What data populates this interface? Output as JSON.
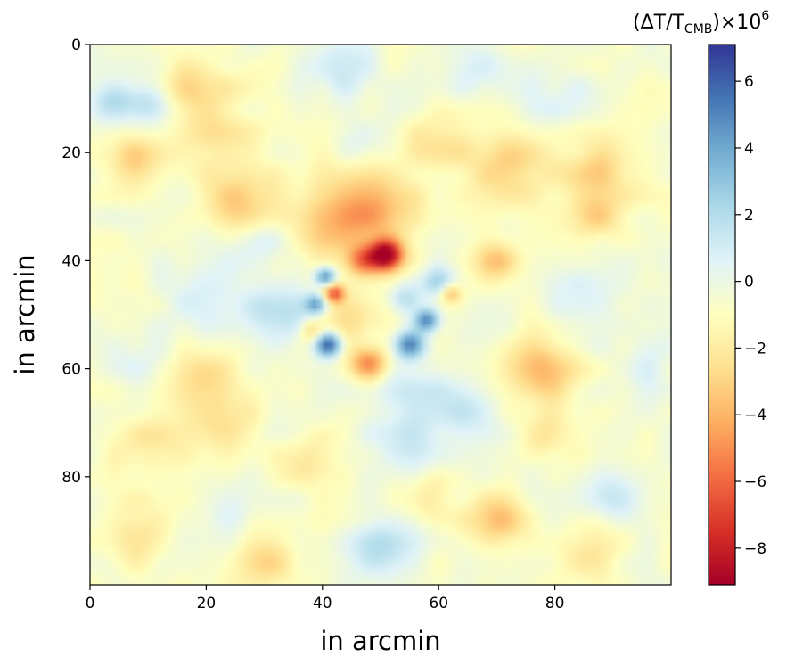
{
  "chart_data": {
    "type": "heatmap",
    "xlabel": "in arcmin",
    "ylabel": "in arcmin",
    "xlim": [
      0,
      100
    ],
    "ylim": [
      100,
      0
    ],
    "x_ticks": [
      0,
      20,
      40,
      60,
      80
    ],
    "y_ticks": [
      0,
      20,
      40,
      60,
      80
    ],
    "y_axis_inverted": true,
    "grid": false,
    "colormap": "RdYlBu (reversed scale: red = negative, blue = positive)",
    "colorbar": {
      "title_prefix": "(ΔT/T",
      "title_sub": "CMB",
      "title_suffix": ")×10",
      "title_exp": "6",
      "min": -9.1,
      "max": 7.1,
      "ticks": [
        "6",
        "4",
        "2",
        "0",
        "−2",
        "−4",
        "−6",
        "−8"
      ],
      "tick_values": [
        6,
        4,
        2,
        0,
        -2,
        -4,
        -6,
        -8
      ],
      "colors": [
        "#a50026",
        "#d73027",
        "#f46d43",
        "#fdae61",
        "#fee090",
        "#ffffbf",
        "#e0f3f8",
        "#abd9e9",
        "#74add1",
        "#4575b4",
        "#313695"
      ]
    },
    "background_level": -0.6,
    "features": [
      {
        "x": 51,
        "y": 39,
        "value": -9.0,
        "sigma": 2.0
      },
      {
        "x": 47,
        "y": 40,
        "value": -4.5,
        "sigma": 2.0
      },
      {
        "x": 42,
        "y": 46,
        "value": -5.5,
        "sigma": 1.3
      },
      {
        "x": 48,
        "y": 59,
        "value": -5.0,
        "sigma": 2.2
      },
      {
        "x": 62,
        "y": 46,
        "value": -3.5,
        "sigma": 1.3
      },
      {
        "x": 45,
        "y": 50,
        "value": -2.0,
        "sigma": 3.5
      },
      {
        "x": 38,
        "y": 53,
        "value": -2.5,
        "sigma": 1.5
      },
      {
        "x": 49,
        "y": 30,
        "value": -3.5,
        "sigma": 5.0
      },
      {
        "x": 40,
        "y": 33,
        "value": -2.0,
        "sigma": 6.0
      },
      {
        "x": 25,
        "y": 29,
        "value": -2.5,
        "sigma": 4.0
      },
      {
        "x": 7,
        "y": 21,
        "value": -2.5,
        "sigma": 3.5
      },
      {
        "x": 18,
        "y": 8,
        "value": -2.3,
        "sigma": 4.0
      },
      {
        "x": 22,
        "y": 18,
        "value": -1.7,
        "sigma": 5.0
      },
      {
        "x": 72,
        "y": 22,
        "value": -2.5,
        "sigma": 5.0
      },
      {
        "x": 88,
        "y": 23,
        "value": -2.2,
        "sigma": 4.5
      },
      {
        "x": 60,
        "y": 18,
        "value": -1.8,
        "sigma": 4.0
      },
      {
        "x": 78,
        "y": 60,
        "value": -3.3,
        "sigma": 4.0
      },
      {
        "x": 70,
        "y": 40,
        "value": -2.5,
        "sigma": 2.5
      },
      {
        "x": 87,
        "y": 32,
        "value": -2.0,
        "sigma": 3.0
      },
      {
        "x": 20,
        "y": 62,
        "value": -2.0,
        "sigma": 4.0
      },
      {
        "x": 22,
        "y": 70,
        "value": -2.0,
        "sigma": 4.0
      },
      {
        "x": 10,
        "y": 75,
        "value": -1.6,
        "sigma": 4.0
      },
      {
        "x": 70,
        "y": 88,
        "value": -3.3,
        "sigma": 3.5
      },
      {
        "x": 58,
        "y": 84,
        "value": -2.0,
        "sigma": 3.0
      },
      {
        "x": 30,
        "y": 96,
        "value": -2.3,
        "sigma": 4.0
      },
      {
        "x": 8,
        "y": 91,
        "value": -2.0,
        "sigma": 4.0
      },
      {
        "x": 85,
        "y": 94,
        "value": -1.8,
        "sigma": 4.0
      },
      {
        "x": 78,
        "y": 72,
        "value": -2.0,
        "sigma": 3.0
      },
      {
        "x": 38,
        "y": 77,
        "value": -1.8,
        "sigma": 3.5
      },
      {
        "x": 40.5,
        "y": 43,
        "value": 6.0,
        "sigma": 1.3
      },
      {
        "x": 39,
        "y": 48,
        "value": 5.0,
        "sigma": 1.4
      },
      {
        "x": 41,
        "y": 55.5,
        "value": 6.8,
        "sigma": 1.6
      },
      {
        "x": 58,
        "y": 51,
        "value": 5.5,
        "sigma": 1.5
      },
      {
        "x": 55,
        "y": 55.5,
        "value": 5.5,
        "sigma": 1.8
      },
      {
        "x": 60,
        "y": 44,
        "value": 3.3,
        "sigma": 2.0
      },
      {
        "x": 54,
        "y": 47,
        "value": 2.5,
        "sigma": 2.0
      },
      {
        "x": 32,
        "y": 50,
        "value": 2.5,
        "sigma": 4.0
      },
      {
        "x": 20,
        "y": 46,
        "value": 1.5,
        "sigma": 5.0
      },
      {
        "x": 4,
        "y": 11,
        "value": 2.8,
        "sigma": 2.5
      },
      {
        "x": 10,
        "y": 11,
        "value": 2.0,
        "sigma": 2.5
      },
      {
        "x": 43,
        "y": 4,
        "value": 2.0,
        "sigma": 4.0
      },
      {
        "x": 67,
        "y": 4,
        "value": 1.5,
        "sigma": 4.0
      },
      {
        "x": 46,
        "y": 18,
        "value": 1.2,
        "sigma": 3.0
      },
      {
        "x": 30,
        "y": 37,
        "value": 1.5,
        "sigma": 3.5
      },
      {
        "x": 55,
        "y": 63,
        "value": 1.5,
        "sigma": 5.0
      },
      {
        "x": 65,
        "y": 67,
        "value": 1.5,
        "sigma": 4.0
      },
      {
        "x": 55,
        "y": 73,
        "value": 1.7,
        "sigma": 5.0
      },
      {
        "x": 50,
        "y": 93,
        "value": 2.3,
        "sigma": 4.0
      },
      {
        "x": 90,
        "y": 84,
        "value": 2.0,
        "sigma": 3.5
      },
      {
        "x": 67,
        "y": 53,
        "value": 1.0,
        "sigma": 4.0
      },
      {
        "x": 85,
        "y": 48,
        "value": 1.0,
        "sigma": 5.0
      },
      {
        "x": 25,
        "y": 85,
        "value": 1.3,
        "sigma": 4.0
      },
      {
        "x": 80,
        "y": 10,
        "value": 1.0,
        "sigma": 5.0
      },
      {
        "x": 95,
        "y": 60,
        "value": 1.0,
        "sigma": 4.0
      },
      {
        "x": 10,
        "y": 58,
        "value": 1.0,
        "sigma": 4.0
      }
    ]
  }
}
